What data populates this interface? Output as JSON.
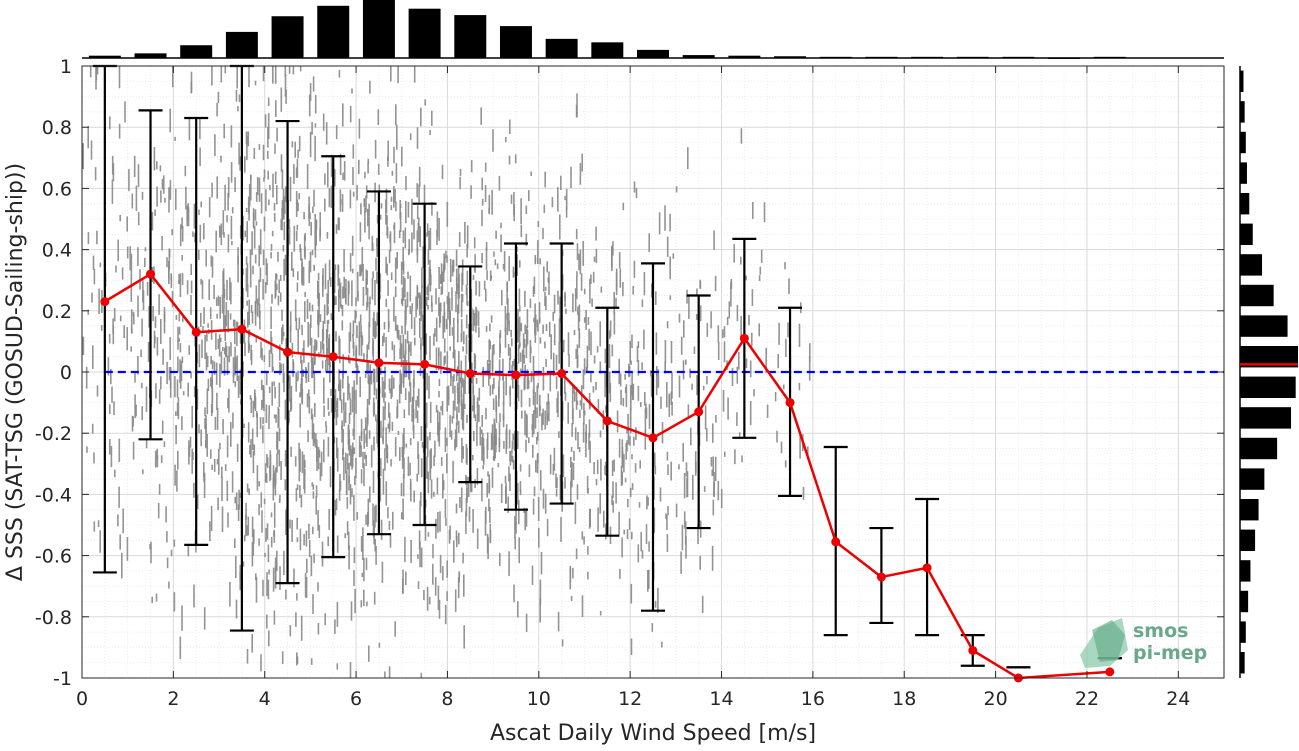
{
  "chart_data": {
    "type": "scatter",
    "title": "",
    "xlabel": "Ascat Daily Wind Speed [m/s]",
    "ylabel": "Δ SSS (SAT-TSG (GOSUD-Sailing-ship))",
    "xlim": [
      0,
      25
    ],
    "ylim": [
      -1,
      1
    ],
    "x_ticks": [
      "0",
      "2",
      "4",
      "6",
      "8",
      "10",
      "12",
      "14",
      "16",
      "18",
      "20",
      "22",
      "24"
    ],
    "y_ticks": [
      "-1",
      "-0.8",
      "-0.6",
      "-0.4",
      "-0.2",
      "0",
      "0.2",
      "0.4",
      "0.6",
      "0.8",
      "1"
    ],
    "grid": true,
    "zero_line": {
      "y": 0,
      "color": "#0000ff",
      "style": "dashed"
    },
    "binned_mean": {
      "color": "#ee0000",
      "x": [
        0.5,
        1.5,
        2.5,
        3.5,
        4.5,
        5.5,
        6.5,
        7.5,
        8.5,
        9.5,
        10.5,
        11.5,
        12.5,
        13.5,
        14.5,
        15.5,
        16.5,
        17.5,
        18.5,
        19.5,
        20.5,
        22.5
      ],
      "y": [
        0.23,
        0.32,
        0.13,
        0.14,
        0.065,
        0.05,
        0.03,
        0.025,
        -0.005,
        -0.01,
        -0.005,
        -0.16,
        -0.215,
        -0.13,
        0.11,
        -0.1,
        -0.555,
        -0.67,
        -0.64,
        -0.91,
        -1.0,
        -0.98
      ],
      "err_low": [
        -0.655,
        -0.22,
        -0.565,
        -0.845,
        -0.69,
        -0.605,
        -0.53,
        -0.5,
        -0.36,
        -0.45,
        -0.43,
        -0.535,
        -0.78,
        -0.51,
        -0.215,
        -0.405,
        -0.86,
        -0.82,
        -0.86,
        -0.96,
        -0.965,
        -0.935
      ],
      "err_high": [
        1.0,
        0.855,
        0.83,
        1.0,
        0.82,
        0.705,
        0.59,
        0.55,
        0.345,
        0.42,
        0.42,
        0.21,
        0.355,
        0.25,
        0.435,
        0.21,
        -0.245,
        -0.51,
        -0.415,
        -0.86,
        -0.965,
        -0.935
      ]
    },
    "scatter_cloud": {
      "color": "#888888",
      "center_y": [
        0.2,
        0.15,
        0.1,
        0.08,
        0.07,
        0.05,
        0.05,
        0.03,
        0.0,
        -0.02,
        -0.02,
        -0.1,
        -0.15,
        -0.1,
        0.1,
        -0.05
      ],
      "spread": [
        0.45,
        0.4,
        0.4,
        0.45,
        0.45,
        0.42,
        0.4,
        0.38,
        0.33,
        0.33,
        0.33,
        0.3,
        0.35,
        0.3,
        0.25,
        0.2
      ],
      "density": [
        0.25,
        0.4,
        0.6,
        0.85,
        1.0,
        1.0,
        1.0,
        0.95,
        0.9,
        0.8,
        0.6,
        0.45,
        0.35,
        0.25,
        0.15,
        0.08
      ]
    },
    "x_histogram": {
      "bin_centers": [
        0.5,
        1.5,
        2.5,
        3.5,
        4.5,
        5.5,
        6.5,
        7.5,
        8.5,
        9.5,
        10.5,
        11.5,
        12.5,
        13.5,
        14.5,
        15.5,
        16.5,
        17.5,
        18.5,
        19.5,
        20.5,
        21.5,
        22.5
      ],
      "values": [
        0.04,
        0.08,
        0.22,
        0.45,
        0.72,
        0.9,
        1.0,
        0.85,
        0.74,
        0.55,
        0.33,
        0.27,
        0.14,
        0.05,
        0.04,
        0.03,
        0.02,
        0.02,
        0.02,
        0.02,
        0.02,
        0.01,
        0.02
      ]
    },
    "y_histogram": {
      "bin_centers": [
        0.95,
        0.85,
        0.75,
        0.65,
        0.55,
        0.45,
        0.35,
        0.25,
        0.15,
        0.05,
        -0.05,
        -0.15,
        -0.25,
        -0.35,
        -0.45,
        -0.55,
        -0.65,
        -0.75,
        -0.85,
        -0.95
      ],
      "values": [
        0.06,
        0.08,
        0.1,
        0.12,
        0.16,
        0.22,
        0.38,
        0.58,
        0.82,
        1.0,
        0.96,
        0.88,
        0.64,
        0.42,
        0.32,
        0.26,
        0.18,
        0.14,
        0.1,
        0.08
      ],
      "mean_line": {
        "y": 0.025,
        "color": "#ee0000"
      }
    }
  },
  "logo": {
    "line1": "smos",
    "line2": "pi-mep"
  }
}
